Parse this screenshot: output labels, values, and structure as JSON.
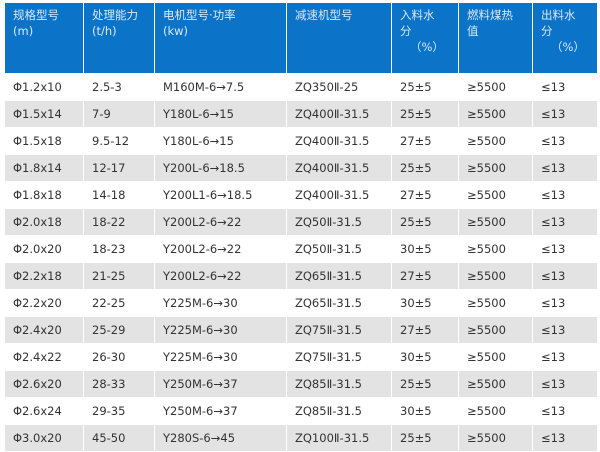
{
  "header": {
    "colors": {
      "header_bg": "#0b74c8",
      "alt_row_bg": "#e3e3e3"
    },
    "columns": [
      {
        "line1": "规格型号",
        "line2": "(m)",
        "line3": ""
      },
      {
        "line1": "处理能力",
        "line2": "(t/h)",
        "line3": ""
      },
      {
        "line1": "电机型号·功率",
        "line2": "(kw)",
        "line3": ""
      },
      {
        "line1": "减速机型号",
        "line2": "",
        "line3": ""
      },
      {
        "line1": "入料水",
        "line2": "分",
        "line3": "（%）"
      },
      {
        "line1": "燃料煤热",
        "line2": "值",
        "line3": ""
      },
      {
        "line1": "出料水",
        "line2": "分",
        "line3": "（%）"
      }
    ]
  },
  "rows": [
    [
      "Φ1.2x10",
      "2.5-3",
      "M160M-6→7.5",
      "ZQ350Ⅱ-25",
      "25±5",
      "≥5500",
      "≤13"
    ],
    [
      "Φ1.5x14",
      "7-9",
      "Y180L-6→15",
      "ZQ400Ⅱ-31.5",
      "25±5",
      "≥5500",
      "≤13"
    ],
    [
      "Φ1.5x18",
      "9.5-12",
      "Y180L-6→15",
      "ZQ400Ⅱ-31.5",
      "27±5",
      "≥5500",
      "≤13"
    ],
    [
      "Φ1.8x14",
      "12-17",
      "Y200L-6→18.5",
      "ZQ400Ⅱ-31.5",
      "25±5",
      "≥5500",
      "≤13"
    ],
    [
      "Φ1.8x18",
      "14-18",
      "Y200L1-6→18.5",
      "ZQ400Ⅱ-31.5",
      "27±5",
      "≥5500",
      "≤13"
    ],
    [
      "Φ2.0x18",
      "18-22",
      "Y200L2-6→22",
      "ZQ50Ⅱ-31.5",
      "25±5",
      "≥5500",
      "≤13"
    ],
    [
      "Φ2.0x20",
      "18-23",
      "Y200L2-6→22",
      "ZQ50Ⅱ-31.5",
      "30±5",
      "≥5500",
      "≤13"
    ],
    [
      "Φ2.2x18",
      "21-25",
      "Y200L2-6→22",
      "ZQ65Ⅱ-31.5",
      "27±5",
      "≥5500",
      "≤13"
    ],
    [
      "Φ2.2x20",
      "22-25",
      "Y225M-6→30",
      "ZQ65Ⅱ-31.5",
      "30±5",
      "≥5500",
      "≤13"
    ],
    [
      "Φ2.4x20",
      "25-29",
      "Y225M-6→30",
      "ZQ75Ⅱ-31.5",
      "27±5",
      "≥5500",
      "≤13"
    ],
    [
      "Φ2.4x22",
      "26-30",
      "Y225M-6→30",
      "ZQ75Ⅱ-31.5",
      "30±5",
      "≥5500",
      "≤13"
    ],
    [
      "Φ2.6x20",
      "28-33",
      "Y250M-6→37",
      "ZQ85Ⅱ-31.5",
      "25±5",
      "≥5500",
      "≤13"
    ],
    [
      "Φ2.6x24",
      "29-35",
      "Y250M-6→37",
      "ZQ85Ⅱ-31.5",
      "30±5",
      "≥5500",
      "≤13"
    ],
    [
      "Φ3.0x20",
      "45-50",
      "Y280S-6→45",
      "ZQ100Ⅱ-31.5",
      "25±5",
      "≥5500",
      "≤13"
    ]
  ]
}
